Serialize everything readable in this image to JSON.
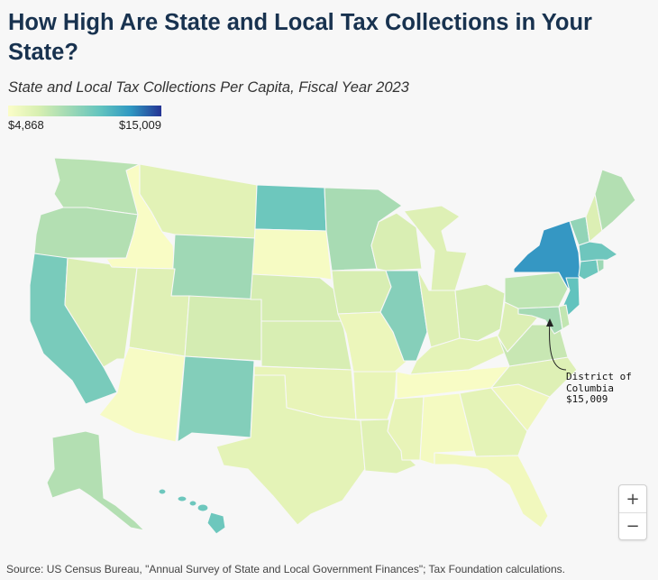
{
  "title": "How High Are State and Local Tax Collections in Your State?",
  "subtitle": "State and Local Tax Collections Per Capita, Fiscal Year 2023",
  "legend": {
    "min_label": "$4,868",
    "max_label": "$15,009",
    "min_value": 4868,
    "max_value": 15009,
    "colors": [
      "#fbfdc8",
      "#d7efb1",
      "#9fd9b5",
      "#63c4bf",
      "#2f98c2",
      "#253494"
    ]
  },
  "annotation": {
    "line1": "District of",
    "line2": "Columbia",
    "line3": "$15,009"
  },
  "zoom": {
    "in_label": "+",
    "out_label": "−"
  },
  "source": "Source: US Census Bureau, \"Annual Survey of State and Local Government Finances\"; Tax Foundation calculations.",
  "state_colors": {
    "WA": "#b9e2b3",
    "OR": "#b3dfb2",
    "CA": "#79cbbb",
    "NV": "#dcefb4",
    "ID": "#f9fcc5",
    "MT": "#e2f2b6",
    "WY": "#9fd8b5",
    "UT": "#dff0b5",
    "AZ": "#f7fbc5",
    "NM": "#83ceba",
    "CO": "#d4ecb2",
    "ND": "#6dc7bd",
    "SD": "#f6fbc3",
    "NE": "#d6edb2",
    "KS": "#d8eeb3",
    "OK": "#e8f4b8",
    "TX": "#e4f3b7",
    "MN": "#a8dbb3",
    "IA": "#d8eeb3",
    "MO": "#ecf6bb",
    "AR": "#e9f5b8",
    "LA": "#e0f1b5",
    "WI": "#d9eeb3",
    "IL": "#86cfba",
    "MI": "#def0b5",
    "IN": "#def0b5",
    "OH": "#d6edb2",
    "KY": "#e4f3b7",
    "TN": "#f8fcc5",
    "MS": "#e8f4b8",
    "AL": "#f4fac1",
    "GA": "#e4f3b7",
    "FL": "#f1f8bd",
    "SC": "#eff7bc",
    "NC": "#def0b5",
    "VA": "#c8e7b3",
    "WV": "#dcefb4",
    "PA": "#bfe5b3",
    "NY": "#3597c3",
    "VT": "#92d4b7",
    "NH": "#dcefb4",
    "ME": "#b3dfb2",
    "MA": "#6ec6bd",
    "CT": "#6cc6bd",
    "RI": "#9dd8b5",
    "NJ": "#62c3be",
    "DE": "#c2e6b2",
    "MD": "#a6dab4",
    "AK": "#b3dfb2",
    "HI": "#6dc7bd"
  }
}
